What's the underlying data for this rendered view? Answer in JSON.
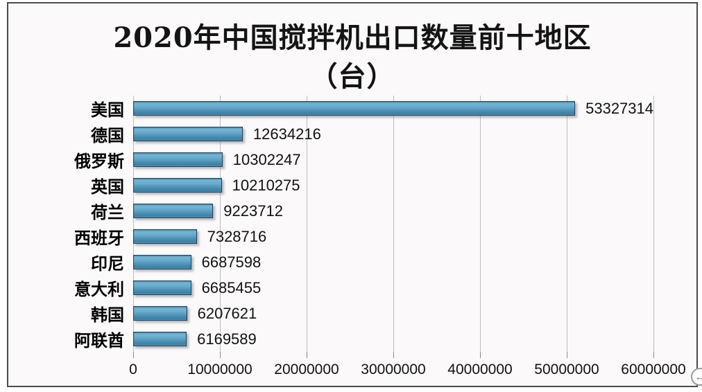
{
  "title": {
    "line1": "2020年中国搅拌机出口数量前十地区",
    "line2": "（台）"
  },
  "chart_data": {
    "type": "bar",
    "orientation": "horizontal",
    "title": "2020年中国搅拌机出口数量前十地区（台）",
    "categories": [
      "美国",
      "德国",
      "俄罗斯",
      "英国",
      "荷兰",
      "西班牙",
      "印尼",
      "意大利",
      "韩国",
      "阿联酋"
    ],
    "values": [
      53327314,
      12634216,
      10302247,
      10210275,
      9223712,
      7328716,
      6687598,
      6685455,
      6207621,
      6169589
    ],
    "value_labels": [
      "53327314",
      "12634216",
      "10302247",
      "10210275",
      "9223712",
      "7328716",
      "6687598",
      "6685455",
      "6207621",
      "6169589"
    ],
    "xlabel": "",
    "ylabel": "",
    "xlim": [
      0,
      60000000
    ],
    "x_ticks": [
      0,
      10000000,
      20000000,
      30000000,
      40000000,
      50000000,
      60000000
    ],
    "x_tick_labels": [
      "0",
      "10000000",
      "20000000",
      "30000000",
      "40000000",
      "50000000",
      "60000000"
    ],
    "grid": true,
    "legend": false,
    "bar_color": "#4a8cb0",
    "bar_border_color": "#1a3f5c",
    "gridline_color": "#bdbdbd",
    "canvas_background": "#fbf9f9",
    "canvas_border_color": "#4b4b4b"
  },
  "icons": {
    "back_arrow": "←"
  }
}
